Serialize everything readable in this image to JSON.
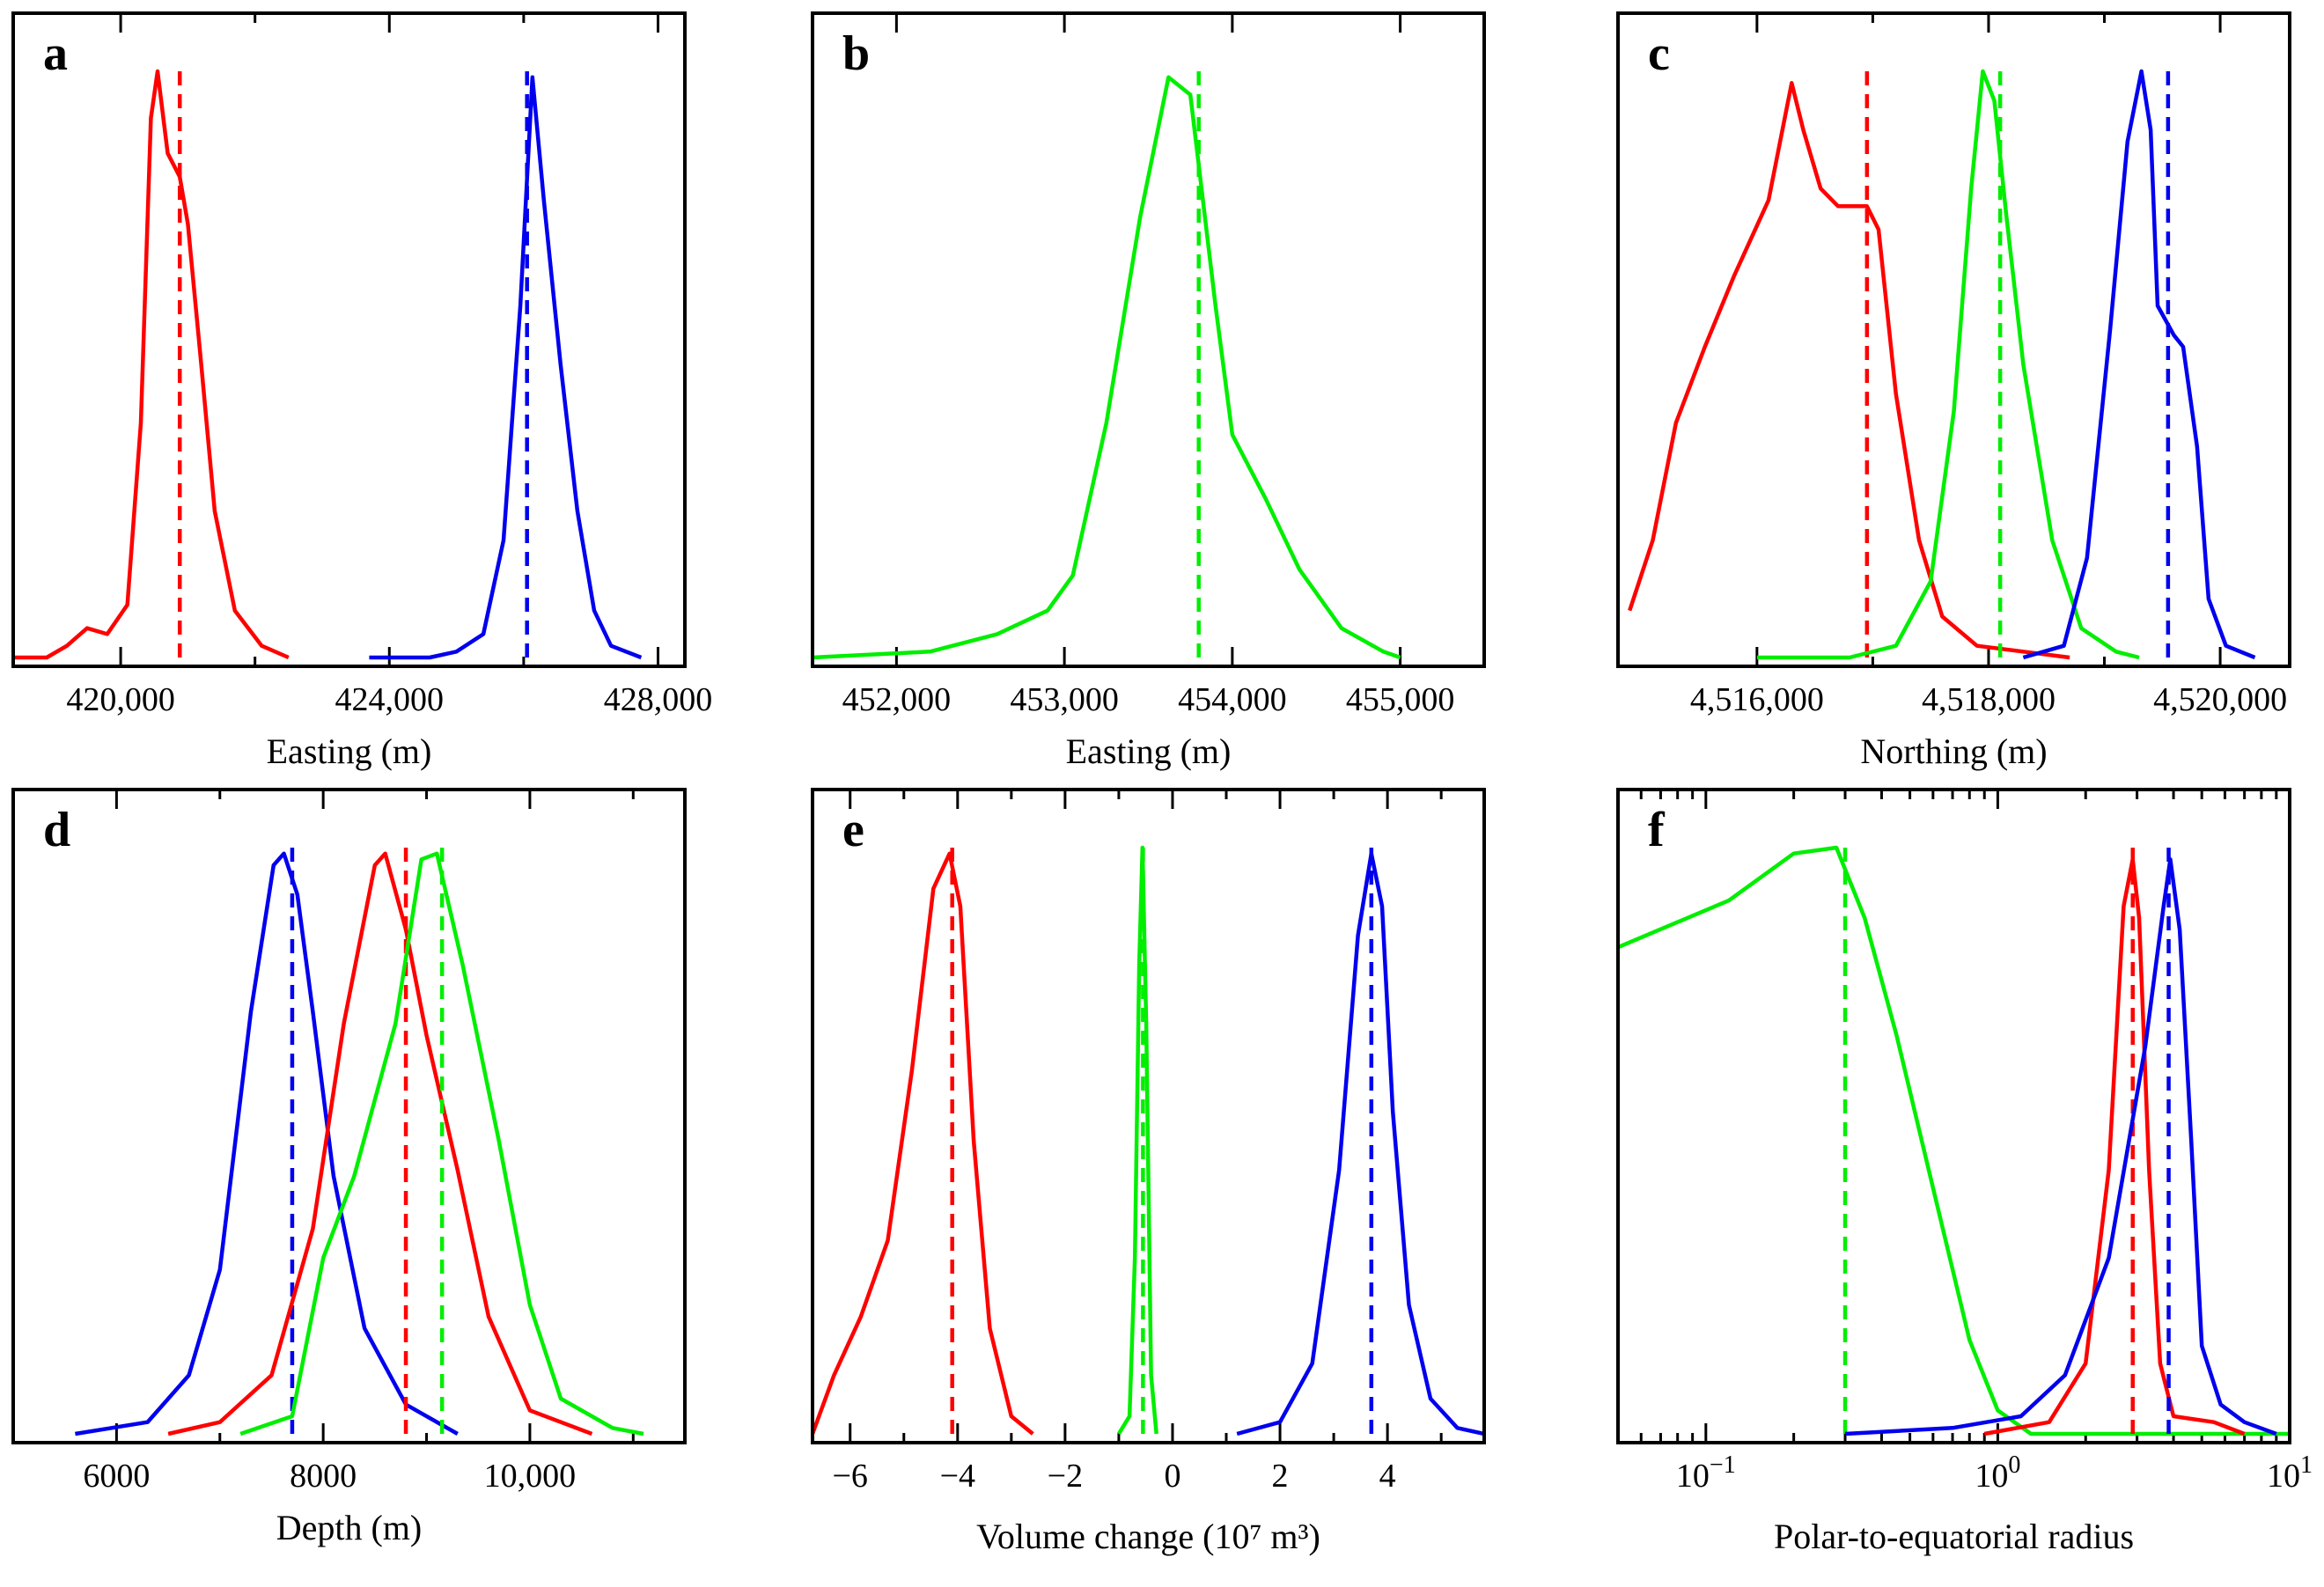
{
  "colors": {
    "red": "#ff0000",
    "green": "#00ee00",
    "blue": "#0000ee"
  },
  "chart_data": [
    {
      "type": "line",
      "panel": "a",
      "xlabel": "Easting (m)",
      "xlim": [
        418400,
        428400
      ],
      "x_scale": "linear",
      "ticks": [
        {
          "v": 420000,
          "t": "420,000"
        },
        {
          "v": 424000,
          "t": "424,000"
        },
        {
          "v": 428000,
          "t": "428,000"
        }
      ],
      "minor_ticks": [
        422000,
        426000
      ],
      "series": [
        {
          "name": "red",
          "color": "#ff0000",
          "median": 420880,
          "points": [
            [
              418400,
              0.0
            ],
            [
              418900,
              0.0
            ],
            [
              419200,
              0.02
            ],
            [
              419500,
              0.05
            ],
            [
              419800,
              0.04
            ],
            [
              420100,
              0.09
            ],
            [
              420300,
              0.4
            ],
            [
              420450,
              0.92
            ],
            [
              420550,
              1.0
            ],
            [
              420700,
              0.86
            ],
            [
              420880,
              0.82
            ],
            [
              421000,
              0.74
            ],
            [
              421200,
              0.5
            ],
            [
              421400,
              0.25
            ],
            [
              421700,
              0.08
            ],
            [
              422100,
              0.02
            ],
            [
              422500,
              0.0
            ]
          ]
        },
        {
          "name": "blue",
          "color": "#0000ee",
          "median": 426050,
          "points": [
            [
              423700,
              0.0
            ],
            [
              424600,
              0.0
            ],
            [
              425000,
              0.01
            ],
            [
              425400,
              0.04
            ],
            [
              425700,
              0.2
            ],
            [
              425950,
              0.6
            ],
            [
              426130,
              0.99
            ],
            [
              426300,
              0.78
            ],
            [
              426550,
              0.5
            ],
            [
              426800,
              0.25
            ],
            [
              427050,
              0.08
            ],
            [
              427300,
              0.02
            ],
            [
              427750,
              0.0
            ]
          ]
        }
      ]
    },
    {
      "type": "line",
      "panel": "b",
      "xlabel": "Easting (m)",
      "xlim": [
        451500,
        455500
      ],
      "x_scale": "linear",
      "ticks": [
        {
          "v": 452000,
          "t": "452,000"
        },
        {
          "v": 453000,
          "t": "453,000"
        },
        {
          "v": 454000,
          "t": "454,000"
        },
        {
          "v": 455000,
          "t": "455,000"
        }
      ],
      "minor_ticks": [],
      "series": [
        {
          "name": "green",
          "color": "#00ee00",
          "median": 453800,
          "points": [
            [
              451500,
              0.0
            ],
            [
              452200,
              0.01
            ],
            [
              452600,
              0.04
            ],
            [
              452900,
              0.08
            ],
            [
              453050,
              0.14
            ],
            [
              453250,
              0.4
            ],
            [
              453450,
              0.75
            ],
            [
              453620,
              0.99
            ],
            [
              453750,
              0.96
            ],
            [
              453900,
              0.6
            ],
            [
              454000,
              0.38
            ],
            [
              454200,
              0.27
            ],
            [
              454400,
              0.15
            ],
            [
              454650,
              0.05
            ],
            [
              454900,
              0.01
            ],
            [
              455000,
              0.0
            ]
          ]
        }
      ]
    },
    {
      "type": "line",
      "panel": "c",
      "xlabel": "Northing (m)",
      "xlim": [
        4514800,
        4520600
      ],
      "x_scale": "linear",
      "ticks": [
        {
          "v": 4516000,
          "t": "4,516,000"
        },
        {
          "v": 4518000,
          "t": "4,518,000"
        },
        {
          "v": 4520000,
          "t": "4,520,000"
        }
      ],
      "minor_ticks": [
        4517000,
        4519000
      ],
      "series": [
        {
          "name": "red",
          "color": "#ff0000",
          "median": 4516950,
          "points": [
            [
              4514900,
              0.08
            ],
            [
              4515100,
              0.2
            ],
            [
              4515300,
              0.4
            ],
            [
              4515550,
              0.53
            ],
            [
              4515800,
              0.65
            ],
            [
              4516100,
              0.78
            ],
            [
              4516300,
              0.98
            ],
            [
              4516400,
              0.9
            ],
            [
              4516550,
              0.8
            ],
            [
              4516700,
              0.77
            ],
            [
              4516950,
              0.77
            ],
            [
              4517050,
              0.73
            ],
            [
              4517200,
              0.45
            ],
            [
              4517400,
              0.2
            ],
            [
              4517600,
              0.07
            ],
            [
              4517900,
              0.02
            ],
            [
              4518300,
              0.01
            ],
            [
              4518700,
              0.0
            ]
          ]
        },
        {
          "name": "green",
          "color": "#00ee00",
          "median": 4518100,
          "points": [
            [
              4516000,
              0.0
            ],
            [
              4516800,
              0.0
            ],
            [
              4517200,
              0.02
            ],
            [
              4517500,
              0.13
            ],
            [
              4517700,
              0.42
            ],
            [
              4517850,
              0.8
            ],
            [
              4517950,
              1.0
            ],
            [
              4518050,
              0.95
            ],
            [
              4518150,
              0.76
            ],
            [
              4518300,
              0.5
            ],
            [
              4518550,
              0.2
            ],
            [
              4518800,
              0.05
            ],
            [
              4519100,
              0.01
            ],
            [
              4519300,
              0.0
            ]
          ]
        },
        {
          "name": "blue",
          "color": "#0000ee",
          "median": 4519550,
          "points": [
            [
              4518300,
              0.0
            ],
            [
              4518650,
              0.02
            ],
            [
              4518850,
              0.17
            ],
            [
              4519050,
              0.56
            ],
            [
              4519200,
              0.88
            ],
            [
              4519320,
              1.0
            ],
            [
              4519400,
              0.9
            ],
            [
              4519460,
              0.6
            ],
            [
              4519600,
              0.55
            ],
            [
              4519680,
              0.53
            ],
            [
              4519800,
              0.36
            ],
            [
              4519900,
              0.1
            ],
            [
              4520050,
              0.02
            ],
            [
              4520300,
              0.0
            ]
          ]
        }
      ]
    },
    {
      "type": "line",
      "panel": "d",
      "xlabel": "Depth (m)",
      "xlim": [
        5000,
        11500
      ],
      "x_scale": "linear",
      "ticks": [
        {
          "v": 6000,
          "t": "6000"
        },
        {
          "v": 8000,
          "t": "8000"
        },
        {
          "v": 10000,
          "t": "10,000"
        }
      ],
      "minor_ticks": [
        5000,
        7000,
        9000,
        11000
      ],
      "series": [
        {
          "name": "blue",
          "color": "#0000ee",
          "median": 7700,
          "points": [
            [
              5600,
              0.0
            ],
            [
              6300,
              0.02
            ],
            [
              6700,
              0.1
            ],
            [
              7000,
              0.28
            ],
            [
              7300,
              0.72
            ],
            [
              7520,
              0.97
            ],
            [
              7620,
              0.99
            ],
            [
              7750,
              0.92
            ],
            [
              7900,
              0.72
            ],
            [
              8100,
              0.44
            ],
            [
              8400,
              0.18
            ],
            [
              8800,
              0.05
            ],
            [
              9300,
              0.0
            ]
          ]
        },
        {
          "name": "red",
          "color": "#ff0000",
          "median": 8800,
          "points": [
            [
              6500,
              0.0
            ],
            [
              7000,
              0.02
            ],
            [
              7500,
              0.1
            ],
            [
              7900,
              0.35
            ],
            [
              8200,
              0.7
            ],
            [
              8500,
              0.97
            ],
            [
              8600,
              0.99
            ],
            [
              8800,
              0.86
            ],
            [
              9000,
              0.68
            ],
            [
              9300,
              0.45
            ],
            [
              9600,
              0.2
            ],
            [
              10000,
              0.04
            ],
            [
              10600,
              0.0
            ]
          ]
        },
        {
          "name": "green",
          "color": "#00ee00",
          "median": 9150,
          "points": [
            [
              7200,
              0.0
            ],
            [
              7700,
              0.03
            ],
            [
              8000,
              0.3
            ],
            [
              8300,
              0.44
            ],
            [
              8700,
              0.7
            ],
            [
              8950,
              0.98
            ],
            [
              9100,
              0.99
            ],
            [
              9350,
              0.8
            ],
            [
              9700,
              0.5
            ],
            [
              10000,
              0.22
            ],
            [
              10300,
              0.06
            ],
            [
              10800,
              0.01
            ],
            [
              11100,
              0.0
            ]
          ]
        }
      ]
    },
    {
      "type": "line",
      "panel": "e",
      "xlabel": "Volume change (10⁷ m³)",
      "xlim": [
        -6.7,
        5.8
      ],
      "x_scale": "linear",
      "ticks": [
        {
          "v": -6,
          "t": "−6"
        },
        {
          "v": -4,
          "t": "−4"
        },
        {
          "v": -2,
          "t": "−2"
        },
        {
          "v": 0,
          "t": "0"
        },
        {
          "v": 2,
          "t": "2"
        },
        {
          "v": 4,
          "t": "4"
        }
      ],
      "minor_ticks": [
        -5,
        -3,
        -1,
        1,
        3,
        5
      ],
      "series": [
        {
          "name": "red",
          "color": "#ff0000",
          "median": -4.1,
          "points": [
            [
              -6.7,
              0.0
            ],
            [
              -6.3,
              0.1
            ],
            [
              -5.8,
              0.2
            ],
            [
              -5.3,
              0.33
            ],
            [
              -4.85,
              0.62
            ],
            [
              -4.45,
              0.93
            ],
            [
              -4.15,
              0.99
            ],
            [
              -3.95,
              0.9
            ],
            [
              -3.7,
              0.5
            ],
            [
              -3.4,
              0.18
            ],
            [
              -3.0,
              0.03
            ],
            [
              -2.6,
              0.0
            ]
          ]
        },
        {
          "name": "green",
          "color": "#00ee00",
          "median": -0.55,
          "points": [
            [
              -1.0,
              0.0
            ],
            [
              -0.8,
              0.03
            ],
            [
              -0.7,
              0.3
            ],
            [
              -0.62,
              0.8
            ],
            [
              -0.56,
              1.0
            ],
            [
              -0.49,
              0.7
            ],
            [
              -0.4,
              0.1
            ],
            [
              -0.3,
              0.0
            ]
          ]
        },
        {
          "name": "blue",
          "color": "#0000ee",
          "median": 3.7,
          "points": [
            [
              1.2,
              0.0
            ],
            [
              2.0,
              0.02
            ],
            [
              2.6,
              0.12
            ],
            [
              3.1,
              0.45
            ],
            [
              3.45,
              0.85
            ],
            [
              3.7,
              0.99
            ],
            [
              3.9,
              0.9
            ],
            [
              4.1,
              0.55
            ],
            [
              4.4,
              0.22
            ],
            [
              4.8,
              0.06
            ],
            [
              5.3,
              0.01
            ],
            [
              5.8,
              0.0
            ]
          ]
        }
      ]
    },
    {
      "type": "line",
      "panel": "f",
      "xlabel": "Polar-to-equatorial radius",
      "xlim": [
        0.05,
        10
      ],
      "x_scale": "log",
      "ticks": [
        {
          "v": 0.1,
          "base": "10",
          "exp": "−1"
        },
        {
          "v": 1,
          "base": "10",
          "exp": "0"
        },
        {
          "v": 10,
          "base": "10",
          "exp": "1"
        }
      ],
      "minor_ticks": [
        0.06,
        0.07,
        0.08,
        0.09,
        0.2,
        0.3,
        0.4,
        0.5,
        0.6,
        0.7,
        0.8,
        0.9,
        2,
        3,
        4,
        5,
        6,
        7,
        8,
        9
      ],
      "series": [
        {
          "name": "green",
          "color": "#00ee00",
          "median": 0.3,
          "points": [
            [
              0.05,
              0.83
            ],
            [
              0.12,
              0.91
            ],
            [
              0.2,
              0.99
            ],
            [
              0.28,
              1.0
            ],
            [
              0.35,
              0.88
            ],
            [
              0.45,
              0.68
            ],
            [
              0.6,
              0.42
            ],
            [
              0.8,
              0.16
            ],
            [
              1.0,
              0.04
            ],
            [
              1.3,
              0.0
            ],
            [
              10,
              0.0
            ]
          ]
        },
        {
          "name": "red",
          "color": "#ff0000",
          "median": 2.9,
          "points": [
            [
              0.9,
              0.0
            ],
            [
              1.5,
              0.02
            ],
            [
              2.0,
              0.12
            ],
            [
              2.4,
              0.45
            ],
            [
              2.7,
              0.9
            ],
            [
              2.9,
              0.98
            ],
            [
              3.05,
              0.88
            ],
            [
              3.3,
              0.45
            ],
            [
              3.6,
              0.12
            ],
            [
              4.0,
              0.03
            ],
            [
              5.5,
              0.02
            ],
            [
              7,
              0.0
            ]
          ]
        },
        {
          "name": "blue",
          "color": "#0000ee",
          "median": 3.85,
          "points": [
            [
              0.3,
              0.0
            ],
            [
              0.7,
              0.01
            ],
            [
              1.2,
              0.03
            ],
            [
              1.7,
              0.1
            ],
            [
              2.4,
              0.3
            ],
            [
              3.2,
              0.66
            ],
            [
              3.7,
              0.9
            ],
            [
              3.9,
              0.98
            ],
            [
              4.2,
              0.86
            ],
            [
              4.6,
              0.5
            ],
            [
              5.0,
              0.15
            ],
            [
              5.8,
              0.05
            ],
            [
              7,
              0.02
            ],
            [
              9,
              0.0
            ]
          ]
        }
      ]
    }
  ]
}
